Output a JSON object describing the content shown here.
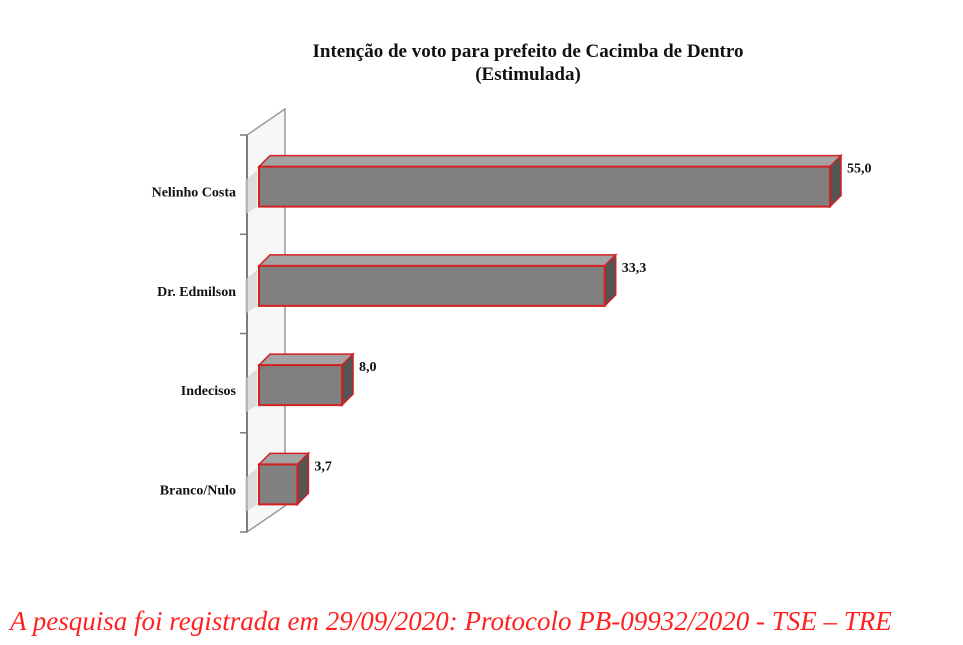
{
  "chart_data": {
    "type": "bar",
    "orientation": "horizontal",
    "title": "Intenção de voto para prefeito de Cacimba de Dentro",
    "subtitle": "(Estimulada)",
    "categories": [
      "Nelinho Costa",
      "Dr. Edmilson",
      "Indecisos",
      "Branco/Nulo"
    ],
    "values": [
      55.0,
      33.3,
      8.0,
      3.7
    ],
    "value_labels": [
      "55,0",
      "33,3",
      "8,0",
      "3,7"
    ],
    "xlim": [
      0,
      60
    ],
    "style": "3d",
    "grid": false,
    "legend": "none",
    "colors": {
      "bar_face": "#808080",
      "bar_side": "#555555",
      "bar_top": "#a3a3a3",
      "bar_edge": "#d42020"
    }
  },
  "footnote": "A pesquisa foi registrada em 29/09/2020: Protocolo PB-09932/2020 - TSE – TRE"
}
